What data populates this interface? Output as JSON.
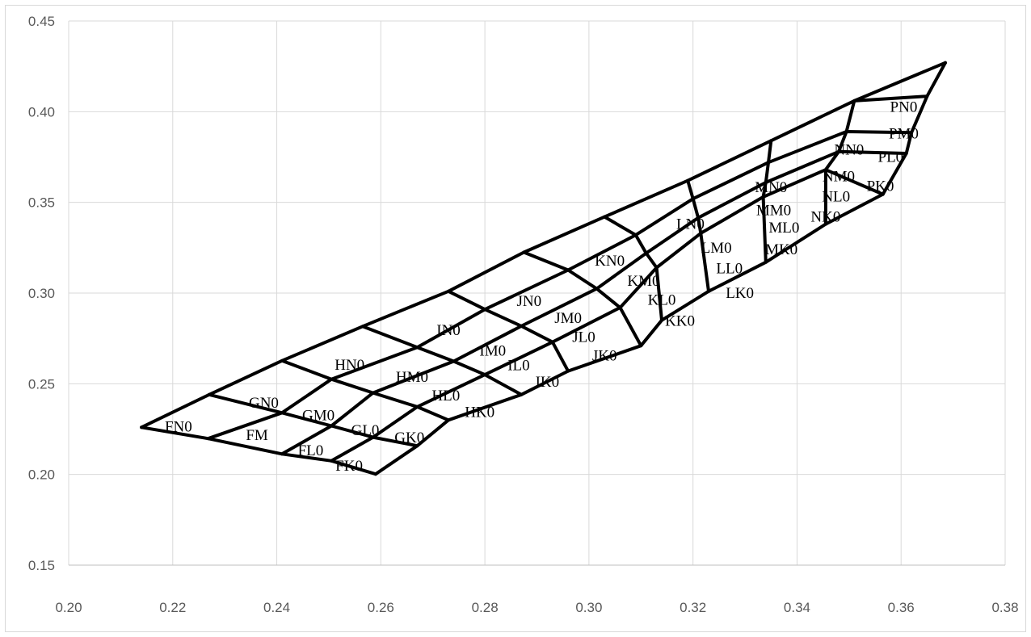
{
  "chart_data": {
    "type": "scatter",
    "title": "",
    "xlabel": "",
    "ylabel": "",
    "xlim": [
      0.2,
      0.38
    ],
    "ylim": [
      0.15,
      0.45
    ],
    "x_ticks": [
      "0.20",
      "0.22",
      "0.24",
      "0.26",
      "0.28",
      "0.30",
      "0.32",
      "0.34",
      "0.36",
      "0.38"
    ],
    "y_ticks": [
      "0.15",
      "0.20",
      "0.25",
      "0.30",
      "0.35",
      "0.40",
      "0.45"
    ],
    "grid": "vertical and horizontal",
    "legend": "none",
    "line_color": "#000000",
    "grid_color": "#d9d9d9",
    "columns": [
      "F",
      "G",
      "H",
      "I",
      "J",
      "K",
      "L",
      "M",
      "N",
      "P"
    ],
    "rows": [
      "N",
      "M",
      "L",
      "K"
    ],
    "grid_lines": {
      "F": [
        [
          0.214,
          0.226
        ],
        [
          0.2268,
          0.2198
        ],
        [
          0.241,
          0.2113
        ],
        [
          0.2505,
          0.2075
        ],
        [
          0.259,
          0.2002
        ]
      ],
      "G": [
        [
          0.227,
          0.244
        ],
        [
          0.241,
          0.234
        ],
        [
          0.2505,
          0.2268
        ],
        [
          0.2585,
          0.2205
        ],
        [
          0.267,
          0.2158
        ]
      ],
      "H": [
        [
          0.241,
          0.2627
        ],
        [
          0.2505,
          0.2525
        ],
        [
          0.2585,
          0.245
        ],
        [
          0.267,
          0.2373
        ],
        [
          0.273,
          0.23
        ]
      ],
      "I": [
        [
          0.2565,
          0.2816
        ],
        [
          0.267,
          0.2701
        ],
        [
          0.274,
          0.2624
        ],
        [
          0.28,
          0.255
        ],
        [
          0.287,
          0.244
        ]
      ],
      "J": [
        [
          0.273,
          0.301
        ],
        [
          0.28,
          0.291
        ],
        [
          0.287,
          0.2818
        ],
        [
          0.293,
          0.273
        ],
        [
          0.296,
          0.257
        ]
      ],
      "K": [
        [
          0.2875,
          0.3225
        ],
        [
          0.296,
          0.3127
        ],
        [
          0.3015,
          0.3024
        ],
        [
          0.306,
          0.292
        ],
        [
          0.31,
          0.271
        ]
      ],
      "L": [
        [
          0.303,
          0.342
        ],
        [
          0.309,
          0.332
        ],
        [
          0.311,
          0.322
        ],
        [
          0.313,
          0.314
        ],
        [
          0.314,
          0.285
        ]
      ],
      "M": [
        [
          0.319,
          0.362
        ],
        [
          0.32,
          0.352
        ],
        [
          0.321,
          0.3415
        ],
        [
          0.3215,
          0.333
        ],
        [
          0.323,
          0.301
        ]
      ],
      "N": [
        [
          0.335,
          0.384
        ],
        [
          0.3345,
          0.372
        ],
        [
          0.334,
          0.361
        ],
        [
          0.3335,
          0.353
        ],
        [
          0.334,
          0.317
        ]
      ],
      "P": [
        [
          0.351,
          0.406
        ],
        [
          0.3495,
          0.389
        ],
        [
          0.348,
          0.378
        ],
        [
          0.3455,
          0.368
        ],
        [
          0.3455,
          0.338
        ]
      ]
    },
    "boundary": {
      "top_right": [
        0.3685,
        0.427
      ],
      "row_ends": [
        [
          0.365,
          0.4085
        ],
        [
          0.362,
          0.3885
        ],
        [
          0.361,
          0.377
        ],
        [
          0.3565,
          0.3545
        ]
      ]
    },
    "labels": [
      {
        "text": "FN0",
        "x": 0.2211,
        "y": 0.2268
      },
      {
        "text": "FM",
        "x": 0.2362,
        "y": 0.2222
      },
      {
        "text": "FL0",
        "x": 0.2465,
        "y": 0.2137
      },
      {
        "text": "FK0",
        "x": 0.2539,
        "y": 0.2052
      },
      {
        "text": "GN0",
        "x": 0.2375,
        "y": 0.24
      },
      {
        "text": "GM0",
        "x": 0.248,
        "y": 0.233
      },
      {
        "text": "GL0",
        "x": 0.257,
        "y": 0.2248
      },
      {
        "text": "GK0",
        "x": 0.2655,
        "y": 0.2208
      },
      {
        "text": "HN0",
        "x": 0.254,
        "y": 0.2609
      },
      {
        "text": "HM0",
        "x": 0.266,
        "y": 0.2542
      },
      {
        "text": "HL0",
        "x": 0.2725,
        "y": 0.244
      },
      {
        "text": "HK0",
        "x": 0.279,
        "y": 0.2349
      },
      {
        "text": "IN0",
        "x": 0.273,
        "y": 0.28
      },
      {
        "text": "IM0",
        "x": 0.2815,
        "y": 0.2687
      },
      {
        "text": "IL0",
        "x": 0.2865,
        "y": 0.2605
      },
      {
        "text": "IK0",
        "x": 0.292,
        "y": 0.2514
      },
      {
        "text": "JN0",
        "x": 0.2885,
        "y": 0.296
      },
      {
        "text": "JM0",
        "x": 0.296,
        "y": 0.2867
      },
      {
        "text": "JL0",
        "x": 0.299,
        "y": 0.2761
      },
      {
        "text": "JK0",
        "x": 0.303,
        "y": 0.2659
      },
      {
        "text": "KN0",
        "x": 0.304,
        "y": 0.3183
      },
      {
        "text": "KM0",
        "x": 0.3105,
        "y": 0.3071
      },
      {
        "text": "KL0",
        "x": 0.314,
        "y": 0.2966
      },
      {
        "text": "KK0",
        "x": 0.3175,
        "y": 0.2851
      },
      {
        "text": "LN0",
        "x": 0.3195,
        "y": 0.3386
      },
      {
        "text": "LM0",
        "x": 0.3245,
        "y": 0.3253
      },
      {
        "text": "LL0",
        "x": 0.327,
        "y": 0.3141
      },
      {
        "text": "LK0",
        "x": 0.329,
        "y": 0.3004
      },
      {
        "text": "MN0",
        "x": 0.335,
        "y": 0.3587
      },
      {
        "text": "MM0",
        "x": 0.3355,
        "y": 0.3461
      },
      {
        "text": "ML0",
        "x": 0.3375,
        "y": 0.3364
      },
      {
        "text": "MK0",
        "x": 0.337,
        "y": 0.3244
      },
      {
        "text": "NN0",
        "x": 0.35,
        "y": 0.3794
      },
      {
        "text": "NM0",
        "x": 0.348,
        "y": 0.3648
      },
      {
        "text": "NL0",
        "x": 0.3475,
        "y": 0.3536
      },
      {
        "text": "NK0",
        "x": 0.3455,
        "y": 0.3426
      },
      {
        "text": "PN0",
        "x": 0.3605,
        "y": 0.4031
      },
      {
        "text": "PM0",
        "x": 0.3605,
        "y": 0.3883
      },
      {
        "text": "PL0",
        "x": 0.358,
        "y": 0.3754
      },
      {
        "text": "PK0",
        "x": 0.356,
        "y": 0.3594
      }
    ]
  }
}
